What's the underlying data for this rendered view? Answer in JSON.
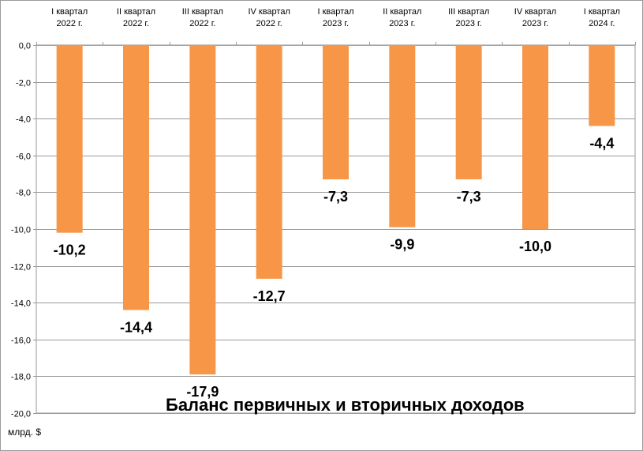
{
  "chart_data": {
    "type": "bar",
    "title": "Баланс первичных и вторичных доходов",
    "unit_label": "млрд. $",
    "categories": [
      [
        "I квартал",
        "2022 г."
      ],
      [
        "II квартал",
        "2022 г."
      ],
      [
        "III квартал",
        "2022 г."
      ],
      [
        "IV квартал",
        "2022 г."
      ],
      [
        "I квартал",
        "2023 г."
      ],
      [
        "II квартал",
        "2023 г."
      ],
      [
        "III квартал",
        "2023 г."
      ],
      [
        "IV квартал",
        "2023 г."
      ],
      [
        "I квартал",
        "2024 г."
      ]
    ],
    "values": [
      -10.2,
      -14.4,
      -17.9,
      -12.7,
      -7.3,
      -9.9,
      -7.3,
      -10.0,
      -4.4
    ],
    "value_labels": [
      "-10,2",
      "-14,4",
      "-17,9",
      "-12,7",
      "-7,3",
      "-9,9",
      "-7,3",
      "-10,0",
      "-4,4"
    ],
    "ylim": [
      -20,
      0
    ],
    "y_ticks": [
      "0,0",
      "-2,0",
      "-4,0",
      "-6,0",
      "-8,0",
      "-10,0",
      "-12,0",
      "-14,0",
      "-16,0",
      "-18,0",
      "-20,0"
    ],
    "y_tick_values": [
      0,
      -2,
      -4,
      -6,
      -8,
      -10,
      -12,
      -14,
      -16,
      -18,
      -20
    ],
    "bar_color": "#F79646",
    "grid": true,
    "category_axis_position": "top"
  }
}
